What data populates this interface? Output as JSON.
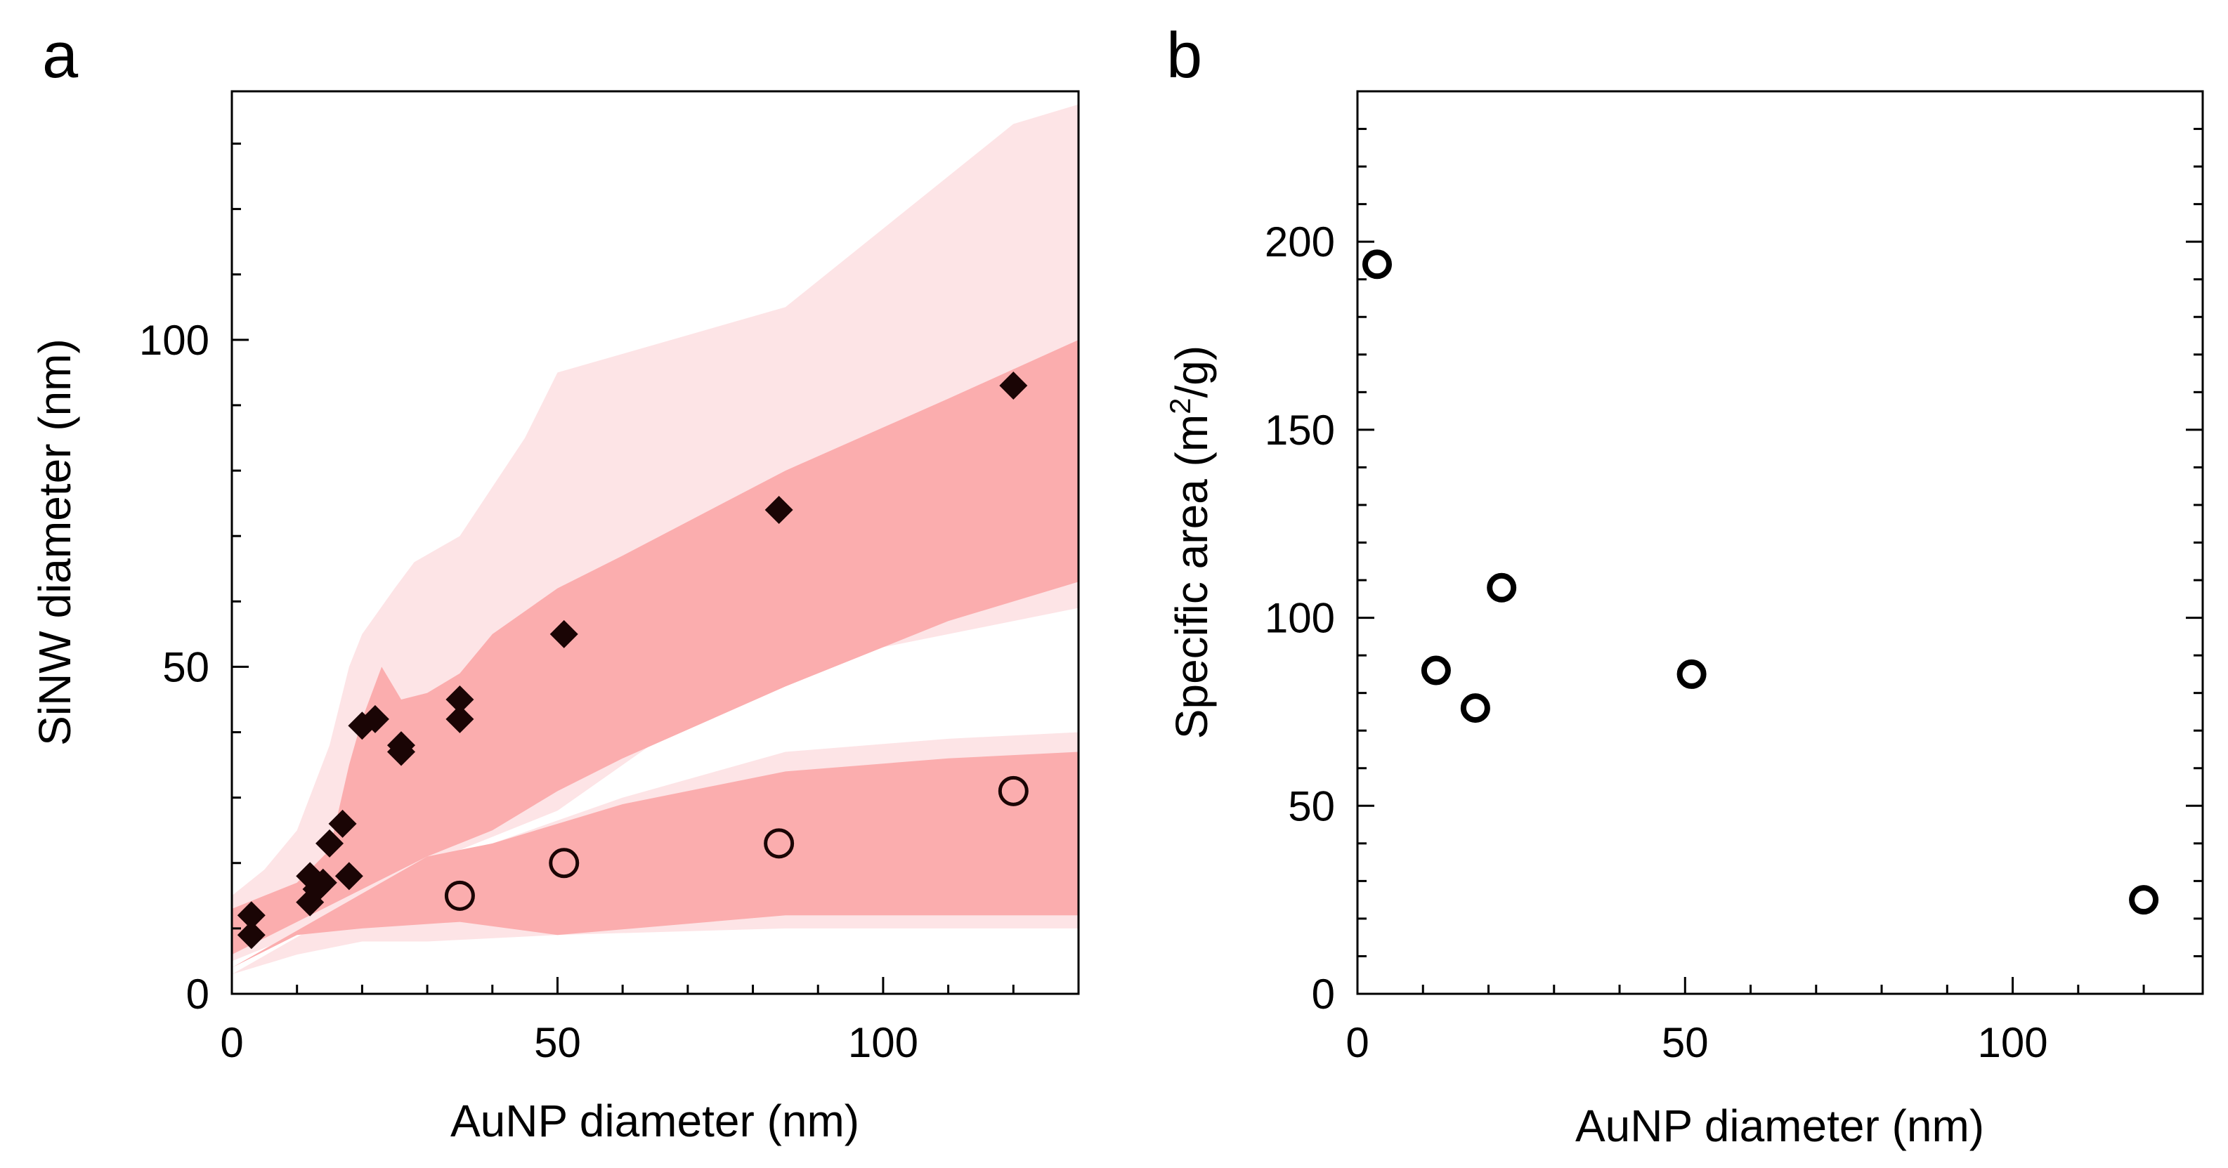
{
  "chart_data": [
    {
      "panel_label": "a",
      "type": "scatter",
      "xlabel": "AuNP diameter (nm)",
      "ylabel": "SiNW diameter (nm)",
      "xlim": [
        0,
        130
      ],
      "ylim": [
        0,
        138
      ],
      "xticks": [
        0,
        50,
        100
      ],
      "yticks": [
        0,
        50,
        100
      ],
      "colors": {
        "outer_band": "#fde4e6",
        "inner_band": "#fbadae",
        "diamond": "#1a0505",
        "circle_stroke": "#1a0505"
      },
      "bands": [
        {
          "name": "upper outer band",
          "upper": [
            [
              0,
              15
            ],
            [
              5,
              19
            ],
            [
              10,
              25
            ],
            [
              15,
              38
            ],
            [
              18,
              50
            ],
            [
              20,
              55
            ],
            [
              25,
              62
            ],
            [
              28,
              66
            ],
            [
              35,
              70
            ],
            [
              45,
              85
            ],
            [
              50,
              95
            ],
            [
              85,
              105
            ],
            [
              120,
              133
            ],
            [
              130,
              136
            ]
          ],
          "lower": [
            [
              130,
              59
            ],
            [
              85,
              50
            ],
            [
              70,
              42
            ],
            [
              60,
              35
            ],
            [
              50,
              28
            ],
            [
              40,
              24
            ],
            [
              35,
              22
            ],
            [
              30,
              20
            ],
            [
              20,
              15
            ],
            [
              10,
              9
            ],
            [
              0,
              5
            ]
          ]
        },
        {
          "name": "upper inner band",
          "upper": [
            [
              0,
              13
            ],
            [
              10,
              17
            ],
            [
              15,
              22
            ],
            [
              18,
              35
            ],
            [
              20,
              42
            ],
            [
              23,
              50
            ],
            [
              26,
              45
            ],
            [
              30,
              46
            ],
            [
              35,
              49
            ],
            [
              40,
              55
            ],
            [
              50,
              62
            ],
            [
              60,
              67
            ],
            [
              85,
              80
            ],
            [
              110,
              91
            ],
            [
              130,
              100
            ]
          ],
          "lower": [
            [
              130,
              63
            ],
            [
              110,
              57
            ],
            [
              85,
              47
            ],
            [
              60,
              36
            ],
            [
              50,
              31
            ],
            [
              40,
              25
            ],
            [
              35,
              23
            ],
            [
              30,
              21
            ],
            [
              20,
              16
            ],
            [
              10,
              11
            ],
            [
              0,
              6
            ]
          ]
        },
        {
          "name": "lower outer band",
          "upper": [
            [
              30,
              20
            ],
            [
              40,
              23
            ],
            [
              60,
              30
            ],
            [
              85,
              37
            ],
            [
              110,
              39
            ],
            [
              130,
              40
            ]
          ],
          "lower": [
            [
              130,
              10
            ],
            [
              85,
              10
            ],
            [
              50,
              9
            ],
            [
              30,
              8
            ],
            [
              20,
              8
            ],
            [
              10,
              6
            ],
            [
              0,
              3
            ]
          ]
        },
        {
          "name": "lower inner band",
          "upper": [
            [
              30,
              21
            ],
            [
              40,
              23
            ],
            [
              60,
              29
            ],
            [
              85,
              34
            ],
            [
              110,
              36
            ],
            [
              130,
              37
            ]
          ],
          "lower": [
            [
              130,
              12
            ],
            [
              85,
              12
            ],
            [
              50,
              9
            ],
            [
              35,
              11
            ],
            [
              20,
              10
            ],
            [
              10,
              9
            ],
            [
              0,
              4
            ]
          ]
        }
      ],
      "series": [
        {
          "name": "SiNW diameter (diamonds)",
          "marker": "diamond",
          "x": [
            3,
            3,
            12,
            12,
            13,
            14,
            15,
            17,
            18,
            20,
            22,
            26,
            26,
            35,
            35,
            51,
            84,
            120
          ],
          "y": [
            9,
            12,
            14,
            18,
            16,
            17,
            23,
            26,
            18,
            41,
            42,
            37,
            38,
            42,
            45,
            55,
            74,
            93
          ]
        },
        {
          "name": "SiNW diameter (circles)",
          "marker": "open-circle",
          "x": [
            35,
            51,
            84,
            120
          ],
          "y": [
            15,
            20,
            23,
            31
          ]
        }
      ]
    },
    {
      "panel_label": "b",
      "type": "scatter",
      "xlabel": "AuNP diameter (nm)",
      "ylabel_main": "Specific area (m",
      "ylabel_sup": "2",
      "ylabel_end": "/g)",
      "xlim": [
        0,
        129
      ],
      "ylim": [
        0,
        240
      ],
      "xticks": [
        0,
        50,
        100
      ],
      "yticks": [
        0,
        50,
        100,
        150,
        200
      ],
      "series": [
        {
          "name": "Specific area",
          "marker": "open-circle",
          "x": [
            3,
            12,
            18,
            22,
            51,
            120
          ],
          "y": [
            194,
            86,
            76,
            108,
            85,
            25
          ]
        }
      ]
    }
  ]
}
